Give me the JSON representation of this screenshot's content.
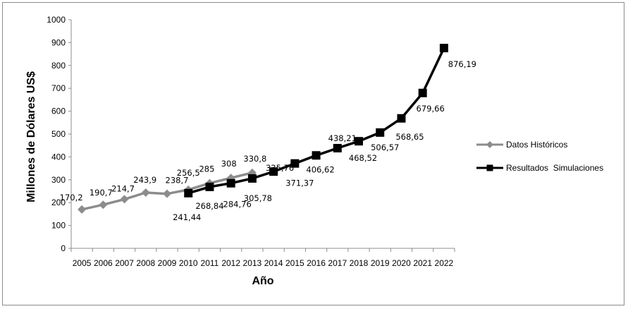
{
  "chart_data": {
    "type": "line",
    "xlabel": "Año",
    "ylabel": "Millones de Dólares US$",
    "ylim": [
      0,
      1000
    ],
    "ytick_step": 100,
    "grid": false,
    "legend_position": "right",
    "categories": [
      "2005",
      "2006",
      "2007",
      "2008",
      "2009",
      "2010",
      "2011",
      "2012",
      "2013",
      "2014",
      "2015",
      "2016",
      "2017",
      "2018",
      "2019",
      "2020",
      "2021",
      "2022"
    ],
    "yticks": [
      "0",
      "100",
      "200",
      "300",
      "400",
      "500",
      "600",
      "700",
      "800",
      "900",
      "1000"
    ],
    "series": [
      {
        "name": "Datos Históricos",
        "color": "#8c8c8c",
        "marker": "diamond",
        "x": [
          "2005",
          "2006",
          "2007",
          "2008",
          "2009",
          "2010",
          "2011",
          "2012",
          "2013"
        ],
        "values": [
          170.2,
          190.7,
          214.7,
          243.9,
          238.7,
          256.5,
          285,
          308,
          330.8
        ],
        "labels": [
          "170,2",
          "190,7",
          "214,7",
          "243,9",
          "238,7",
          "256,5",
          "285",
          "308",
          "330,8"
        ]
      },
      {
        "name": "Resultados  Simulaciones",
        "color": "#000000",
        "marker": "square",
        "x": [
          "2010",
          "2011",
          "2012",
          "2013",
          "2014",
          "2015",
          "2016",
          "2017",
          "2018",
          "2019",
          "2020",
          "2021",
          "2022"
        ],
        "values": [
          241.44,
          268.84,
          284.76,
          305.78,
          335.76,
          371.37,
          406.62,
          438.21,
          468.52,
          506.57,
          568.65,
          679.66,
          876.19
        ],
        "labels": [
          "241,44",
          "268,84",
          "284,76",
          "305,78",
          "335,76",
          "371,37",
          "406,62",
          "438,21",
          "468,52",
          "506,57",
          "568,65",
          "679,66",
          "876,19"
        ]
      }
    ]
  }
}
